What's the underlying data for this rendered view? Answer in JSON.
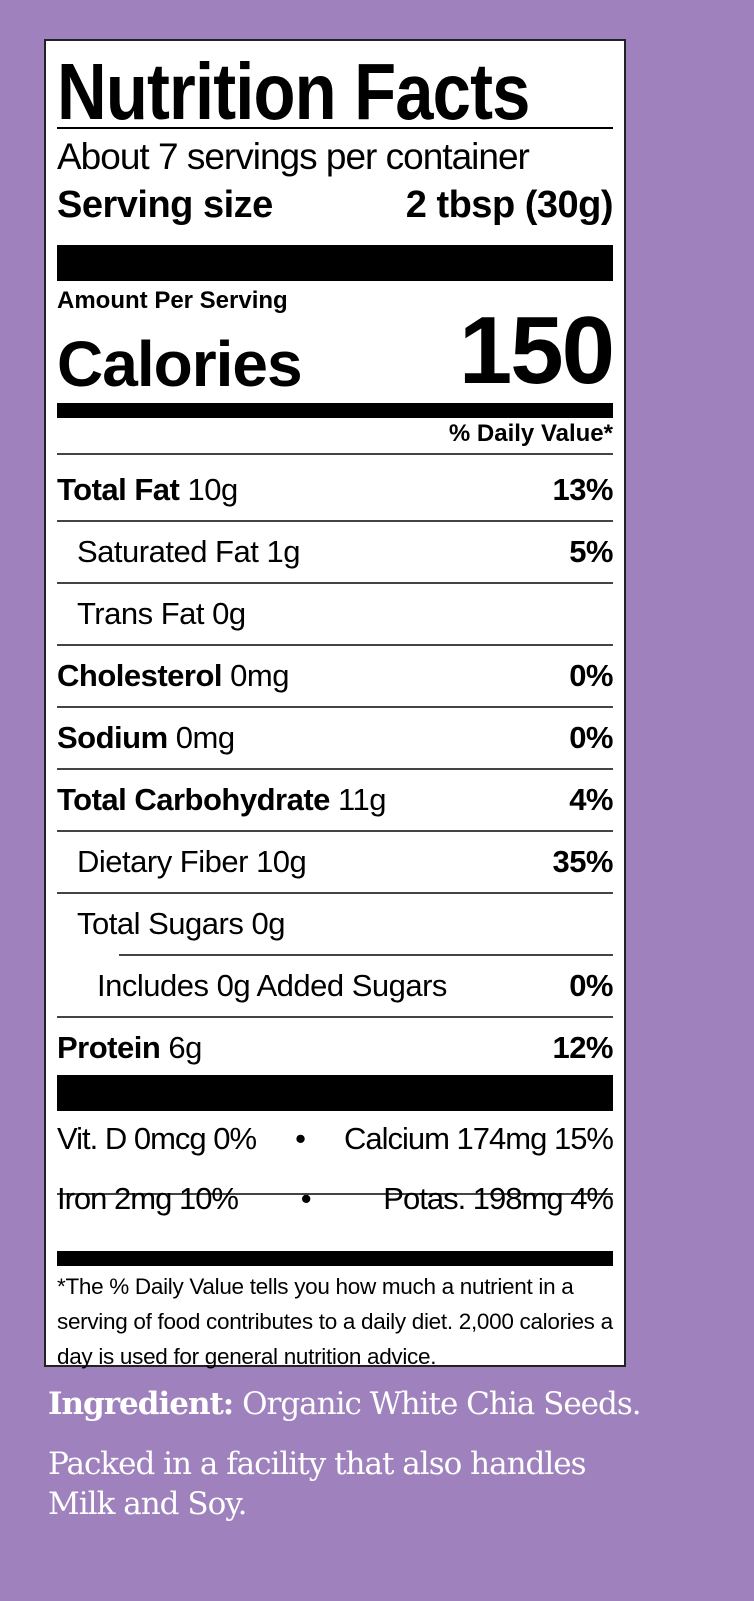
{
  "title": "Nutrition Facts",
  "servings_per_container": "About 7 servings per container",
  "serving_size": {
    "label": "Serving size",
    "value": "2 tbsp (30g)"
  },
  "amount_per_serving": "Amount Per Serving",
  "calories": {
    "label": "Calories",
    "value": "150"
  },
  "daily_value_header": "% Daily Value*",
  "nutrients": [
    {
      "name": "Total Fat",
      "amount": "10g",
      "dv": "13%",
      "bold": true,
      "indent": 0
    },
    {
      "name": "Saturated Fat",
      "amount": "1g",
      "dv": "5%",
      "bold": false,
      "indent": 1
    },
    {
      "name": "Trans Fat",
      "amount": "0g",
      "dv": "",
      "bold": false,
      "indent": 1
    },
    {
      "name": "Cholesterol",
      "amount": "0mg",
      "dv": "0%",
      "bold": true,
      "indent": 0
    },
    {
      "name": "Sodium",
      "amount": "0mg",
      "dv": "0%",
      "bold": true,
      "indent": 0
    },
    {
      "name": "Total Carbohydrate",
      "amount": "11g",
      "dv": "4%",
      "bold": true,
      "indent": 0
    },
    {
      "name": "Dietary Fiber",
      "amount": "10g",
      "dv": "35%",
      "bold": false,
      "indent": 1
    },
    {
      "name": "Total Sugars",
      "amount": "0g",
      "dv": "",
      "bold": false,
      "indent": 1
    },
    {
      "name": "Includes 0g Added Sugars",
      "amount": "",
      "dv": "0%",
      "bold": false,
      "indent": 2
    },
    {
      "name": "Protein",
      "amount": "6g",
      "dv": "12%",
      "bold": true,
      "indent": 0
    }
  ],
  "vitamins": [
    {
      "left": "Vit. D 0mcg 0%",
      "sep": "•",
      "right": "Calcium 174mg 15%"
    },
    {
      "left": "Iron 2mg 10%",
      "sep": "•",
      "right": "Potas. 198mg 4%"
    }
  ],
  "footnote": "*The % Daily Value tells you how much a nutrient in a serving of food contributes to a daily diet. 2,000 calories a day is used for general nutrition advice.",
  "ingredient": {
    "label": "Ingredient:",
    "text": "Organic White Chia Seeds."
  },
  "allergen": {
    "line1": "Packed in a facility that also handles",
    "line2": "Milk and Soy."
  },
  "colors": {
    "background": "#9f82bd",
    "label": "#ffffff",
    "text": "#000000"
  }
}
